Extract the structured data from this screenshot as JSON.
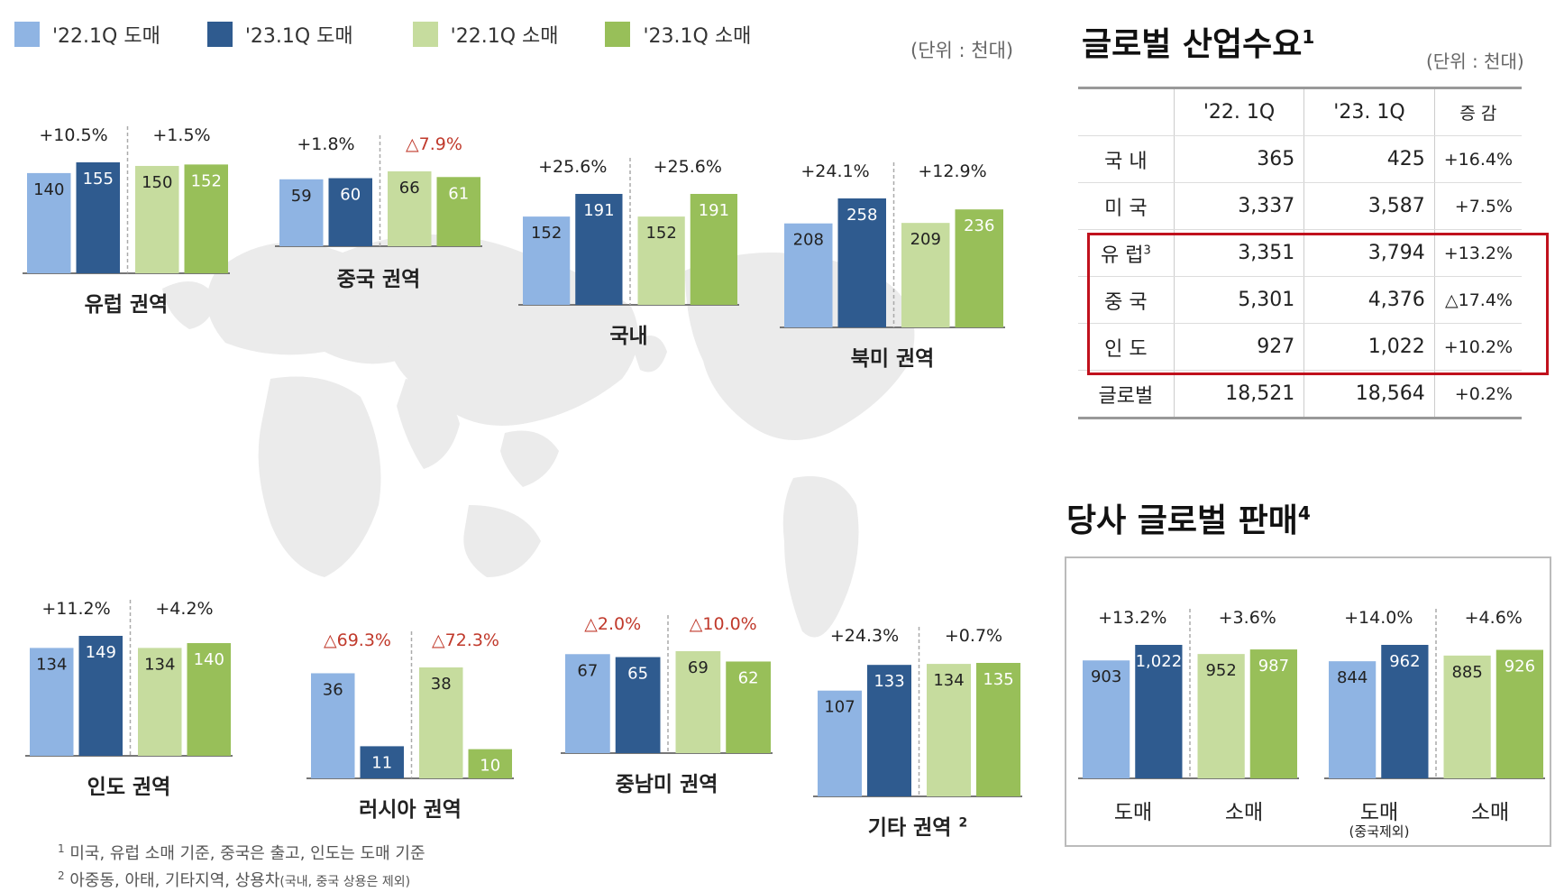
{
  "legend": [
    {
      "label": "'22.1Q 도매",
      "color": "#8fb4e3"
    },
    {
      "label": "'23.1Q 도매",
      "color": "#2f5b8f"
    },
    {
      "label": "'22.1Q 소매",
      "color": "#c6dc9e"
    },
    {
      "label": "'23.1Q 소매",
      "color": "#98bf59"
    }
  ],
  "left_unit": "(단위 : 천대)",
  "chart_data": [
    {
      "type": "bar",
      "title": "유럽 권역",
      "categories": [
        "'22.1Q 도매",
        "'23.1Q 도매",
        "'22.1Q 소매",
        "'23.1Q 소매"
      ],
      "values": [
        140,
        155,
        150,
        152
      ],
      "changes": [
        "+10.5%",
        "+1.5%"
      ],
      "change_negative": [
        false,
        false
      ]
    },
    {
      "type": "bar",
      "title": "중국 권역",
      "categories": [
        "'22.1Q 도매",
        "'23.1Q 도매",
        "'22.1Q 소매",
        "'23.1Q 소매"
      ],
      "values": [
        59,
        60,
        66,
        61
      ],
      "changes": [
        "+1.8%",
        "△7.9%"
      ],
      "change_negative": [
        false,
        true
      ]
    },
    {
      "type": "bar",
      "title": "국내",
      "categories": [
        "'22.1Q 도매",
        "'23.1Q 도매",
        "'22.1Q 소매",
        "'23.1Q 소매"
      ],
      "values": [
        152,
        191,
        152,
        191
      ],
      "changes": [
        "+25.6%",
        "+25.6%"
      ],
      "change_negative": [
        false,
        false
      ]
    },
    {
      "type": "bar",
      "title": "북미 권역",
      "categories": [
        "'22.1Q 도매",
        "'23.1Q 도매",
        "'22.1Q 소매",
        "'23.1Q 소매"
      ],
      "values": [
        208,
        258,
        209,
        236
      ],
      "changes": [
        "+24.1%",
        "+12.9%"
      ],
      "change_negative": [
        false,
        false
      ]
    },
    {
      "type": "bar",
      "title": "인도 권역",
      "categories": [
        "'22.1Q 도매",
        "'23.1Q 도매",
        "'22.1Q 소매",
        "'23.1Q 소매"
      ],
      "values": [
        134,
        149,
        134,
        140
      ],
      "changes": [
        "+11.2%",
        "+4.2%"
      ],
      "change_negative": [
        false,
        false
      ]
    },
    {
      "type": "bar",
      "title": "러시아 권역",
      "categories": [
        "'22.1Q 도매",
        "'23.1Q 도매",
        "'22.1Q 소매",
        "'23.1Q 소매"
      ],
      "values": [
        36,
        11,
        38,
        10
      ],
      "changes": [
        "△69.3%",
        "△72.3%"
      ],
      "change_negative": [
        true,
        true
      ]
    },
    {
      "type": "bar",
      "title": "중남미 권역",
      "categories": [
        "'22.1Q 도매",
        "'23.1Q 도매",
        "'22.1Q 소매",
        "'23.1Q 소매"
      ],
      "values": [
        67,
        65,
        69,
        62
      ],
      "changes": [
        "△2.0%",
        "△10.0%"
      ],
      "change_negative": [
        true,
        true
      ]
    },
    {
      "type": "bar",
      "title": "기타 권역",
      "title_sup": "2",
      "categories": [
        "'22.1Q 도매",
        "'23.1Q 도매",
        "'22.1Q 소매",
        "'23.1Q 소매"
      ],
      "values": [
        107,
        133,
        134,
        135
      ],
      "changes": [
        "+24.3%",
        "+0.7%"
      ],
      "change_negative": [
        false,
        false
      ]
    },
    {
      "type": "bar",
      "title": "",
      "group_labels": [
        "도매",
        "소매"
      ],
      "categories": [
        "'22.1Q 도매",
        "'23.1Q 도매",
        "'22.1Q 소매",
        "'23.1Q 소매"
      ],
      "values": [
        903,
        1022,
        952,
        987
      ],
      "changes": [
        "+13.2%",
        "+3.6%"
      ],
      "change_negative": [
        false,
        false
      ]
    },
    {
      "type": "bar",
      "title": "",
      "group_labels": [
        "도매",
        "소매"
      ],
      "sub_label": "(중국제외)",
      "categories": [
        "'22.1Q 도매",
        "'23.1Q 도매",
        "'22.1Q 소매",
        "'23.1Q 소매"
      ],
      "values": [
        844,
        962,
        885,
        926
      ],
      "changes": [
        "+14.0%",
        "+4.6%"
      ],
      "change_negative": [
        false,
        false
      ]
    }
  ],
  "demand_table": {
    "title": "글로벌 산업수요",
    "title_sup": "1",
    "unit": "(단위 : 천대)",
    "headers": [
      "",
      "'22. 1Q",
      "'23. 1Q",
      "증 감"
    ],
    "rows": [
      {
        "region": "국 내",
        "sup": "",
        "q22": "365",
        "q23": "425",
        "change": "+16.4%"
      },
      {
        "region": "미 국",
        "sup": "",
        "q22": "3,337",
        "q23": "3,587",
        "change": "+7.5%"
      },
      {
        "region": "유 럽",
        "sup": "3",
        "q22": "3,351",
        "q23": "3,794",
        "change": "+13.2%"
      },
      {
        "region": "중 국",
        "sup": "",
        "q22": "5,301",
        "q23": "4,376",
        "change": "△17.4%"
      },
      {
        "region": "인 도",
        "sup": "",
        "q22": "927",
        "q23": "1,022",
        "change": "+10.2%"
      },
      {
        "region": "글로벌",
        "sup": "",
        "q22": "18,521",
        "q23": "18,564",
        "change": "+0.2%"
      }
    ]
  },
  "sales": {
    "title": "당사 글로벌 판매",
    "title_sup": "4"
  },
  "footnotes": [
    {
      "num": "1",
      "text": " 미국, 유럽 소매 기준, 중국은 출고, 인도는 도매 기준",
      "small": ""
    },
    {
      "num": "2",
      "text": " 아중동, 아태, 기타지역, 상용차",
      "small": "(국내, 중국 상용은 제외)"
    }
  ],
  "colors": {
    "negative": "#c0392b",
    "map": "#ebebeb",
    "highlight": "#c0111d"
  }
}
